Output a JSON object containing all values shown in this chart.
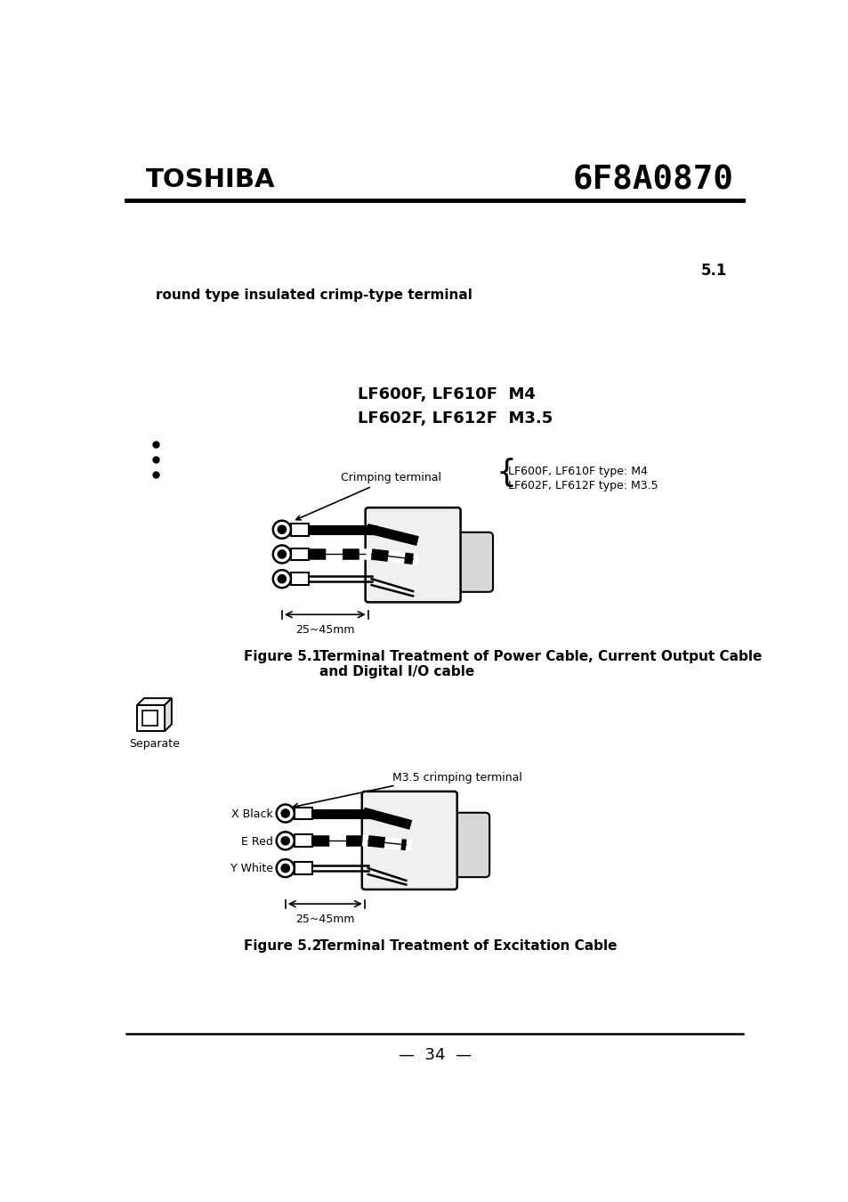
{
  "bg_color": "#ffffff",
  "toshiba_text": "TOSHIBA",
  "doc_number": "6F8A0870",
  "section_number": "5.1",
  "section_text": "round type insulated crimp-type terminal",
  "model_line1": "LF600F, LF610F  M4",
  "model_line2": "LF602F, LF612F  M3.5",
  "fig1_label": "Figure 5.1",
  "fig1_title_line1": "Terminal Treatment of Power Cable, Current Output Cable",
  "fig1_title_line2": "and Digital I/O cable",
  "fig1_annotation1": "Crimping terminal",
  "fig1_annotation2a": "LF600F, LF610F type: M4",
  "fig1_annotation2b": "LF602F, LF612F type: M3.5",
  "fig1_dim_label": "25~45mm",
  "fig2_label": "Figure 5.2",
  "fig2_title": "Terminal Treatment of Excitation Cable",
  "fig2_annotation": "M3.5 crimping terminal",
  "fig2_dim_label": "25~45mm",
  "fig2_wire1": "X Black",
  "fig2_wire2": "E Red",
  "fig2_wire3": "Y White",
  "separate_label": "Separate",
  "page_number": "34"
}
